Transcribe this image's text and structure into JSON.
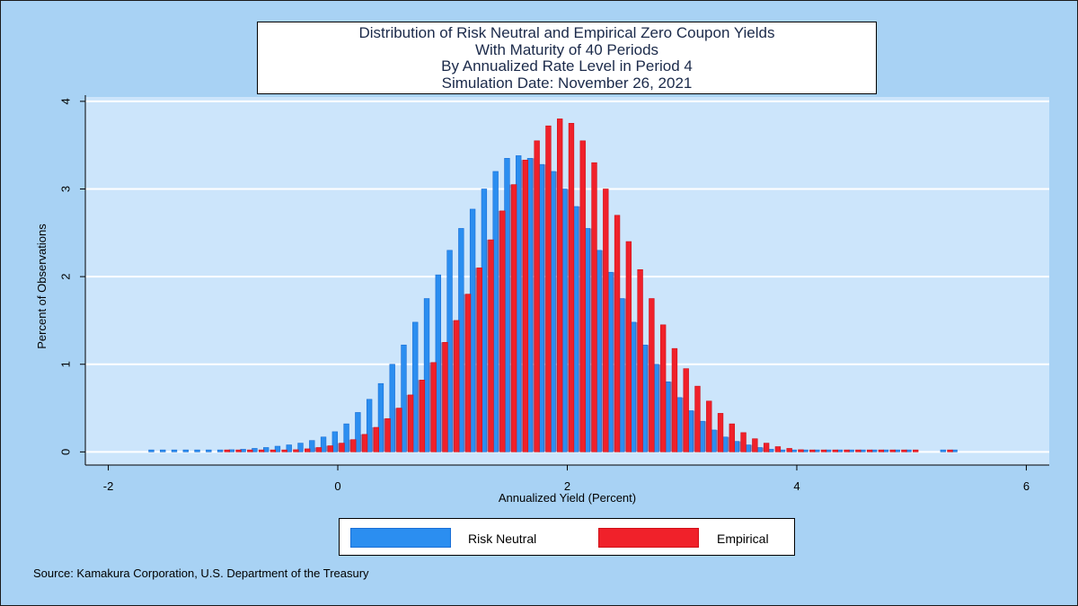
{
  "colors": {
    "background": "#a8d2f4",
    "plot_area": "#cce5fb",
    "gridline": "#ffffff",
    "risk_neutral": "#2b8ef0",
    "risk_neutral_edge": "#1a6fd6",
    "empirical": "#f0212a",
    "empirical_edge": "#d01018",
    "overlap": "#6b3a6e"
  },
  "chart_data": {
    "type": "bar",
    "title": [
      "Distribution of Risk Neutral and Empirical Zero Coupon Yields",
      "With Maturity of 40 Periods",
      "By Annualized Rate Level in Period 4",
      "Simulation Date: November 26, 2021"
    ],
    "xlabel": "Annualized Yield (Percent)",
    "ylabel": "Percent of Observations",
    "xlim": [
      -2.2,
      6.2
    ],
    "ylim": [
      -0.15,
      4.05
    ],
    "xticks": [
      -2,
      0,
      2,
      4,
      6
    ],
    "xtick_labels": [
      "-2",
      "0",
      "2",
      "4",
      "6"
    ],
    "yticks": [
      0,
      1,
      2,
      3,
      4
    ],
    "ytick_labels": [
      "0",
      "1",
      "2",
      "3",
      "4"
    ],
    "grid": true,
    "bin_width": 0.1,
    "series": [
      {
        "name": "Risk Neutral",
        "color": "#2b8ef0",
        "offset": -0.025,
        "x": [
          -1.6,
          -1.5,
          -1.4,
          -1.3,
          -1.2,
          -1.1,
          -1.0,
          -0.9,
          -0.8,
          -0.7,
          -0.6,
          -0.5,
          -0.4,
          -0.3,
          -0.2,
          -0.1,
          0.0,
          0.1,
          0.2,
          0.3,
          0.4,
          0.5,
          0.6,
          0.7,
          0.8,
          0.9,
          1.0,
          1.1,
          1.2,
          1.3,
          1.4,
          1.5,
          1.6,
          1.7,
          1.8,
          1.9,
          2.0,
          2.1,
          2.2,
          2.3,
          2.4,
          2.5,
          2.6,
          2.7,
          2.8,
          2.9,
          3.0,
          3.1,
          3.2,
          3.3,
          3.4,
          3.5,
          3.6,
          3.7,
          3.8,
          3.9,
          4.0,
          4.1,
          4.2,
          4.3,
          4.4,
          4.5,
          4.6,
          4.7,
          4.8,
          4.9,
          5.0,
          5.3,
          5.4
        ],
        "values": [
          0.006,
          0.008,
          0.01,
          0.012,
          0.015,
          0.016,
          0.02,
          0.025,
          0.03,
          0.04,
          0.05,
          0.065,
          0.08,
          0.1,
          0.13,
          0.17,
          0.23,
          0.32,
          0.45,
          0.6,
          0.78,
          1.0,
          1.22,
          1.48,
          1.75,
          2.02,
          2.3,
          2.55,
          2.77,
          3.0,
          3.2,
          3.35,
          3.38,
          3.35,
          3.28,
          3.2,
          3.0,
          2.8,
          2.55,
          2.3,
          2.05,
          1.75,
          1.48,
          1.22,
          1.0,
          0.8,
          0.62,
          0.47,
          0.35,
          0.25,
          0.17,
          0.12,
          0.08,
          0.05,
          0.03,
          0.02,
          0.015,
          0.01,
          0.008,
          0.006,
          0.005,
          0.004,
          0.004,
          0.003,
          0.003,
          0.003,
          0.002,
          0.003,
          0.003
        ]
      },
      {
        "name": "Empirical",
        "color": "#f0212a",
        "offset": 0.035,
        "x": [
          -1.0,
          -0.9,
          -0.8,
          -0.7,
          -0.6,
          -0.5,
          -0.4,
          -0.3,
          -0.2,
          -0.1,
          0.0,
          0.1,
          0.2,
          0.3,
          0.4,
          0.5,
          0.6,
          0.7,
          0.8,
          0.9,
          1.0,
          1.1,
          1.2,
          1.3,
          1.4,
          1.5,
          1.6,
          1.7,
          1.8,
          1.9,
          2.0,
          2.1,
          2.2,
          2.3,
          2.4,
          2.5,
          2.6,
          2.7,
          2.8,
          2.9,
          3.0,
          3.1,
          3.2,
          3.3,
          3.4,
          3.5,
          3.6,
          3.7,
          3.8,
          3.9,
          4.0,
          4.1,
          4.2,
          4.3,
          4.4,
          4.5,
          4.6,
          4.7,
          4.8,
          4.9,
          5.0,
          5.3
        ],
        "values": [
          0.004,
          0.006,
          0.008,
          0.01,
          0.015,
          0.02,
          0.025,
          0.035,
          0.05,
          0.07,
          0.1,
          0.14,
          0.2,
          0.28,
          0.38,
          0.5,
          0.65,
          0.82,
          1.02,
          1.25,
          1.5,
          1.8,
          2.1,
          2.42,
          2.75,
          3.05,
          3.33,
          3.55,
          3.72,
          3.8,
          3.75,
          3.55,
          3.3,
          3.0,
          2.7,
          2.4,
          2.08,
          1.75,
          1.45,
          1.18,
          0.95,
          0.75,
          0.58,
          0.44,
          0.32,
          0.22,
          0.15,
          0.1,
          0.06,
          0.04,
          0.025,
          0.015,
          0.01,
          0.008,
          0.006,
          0.005,
          0.004,
          0.004,
          0.003,
          0.003,
          0.002,
          0.003
        ]
      }
    ]
  },
  "legend": {
    "items": [
      {
        "label": "Risk Neutral",
        "color": "#2b8ef0"
      },
      {
        "label": "Empirical",
        "color": "#f0212a"
      }
    ]
  },
  "source": "Source: Kamakura Corporation, U.S. Department of the Treasury"
}
